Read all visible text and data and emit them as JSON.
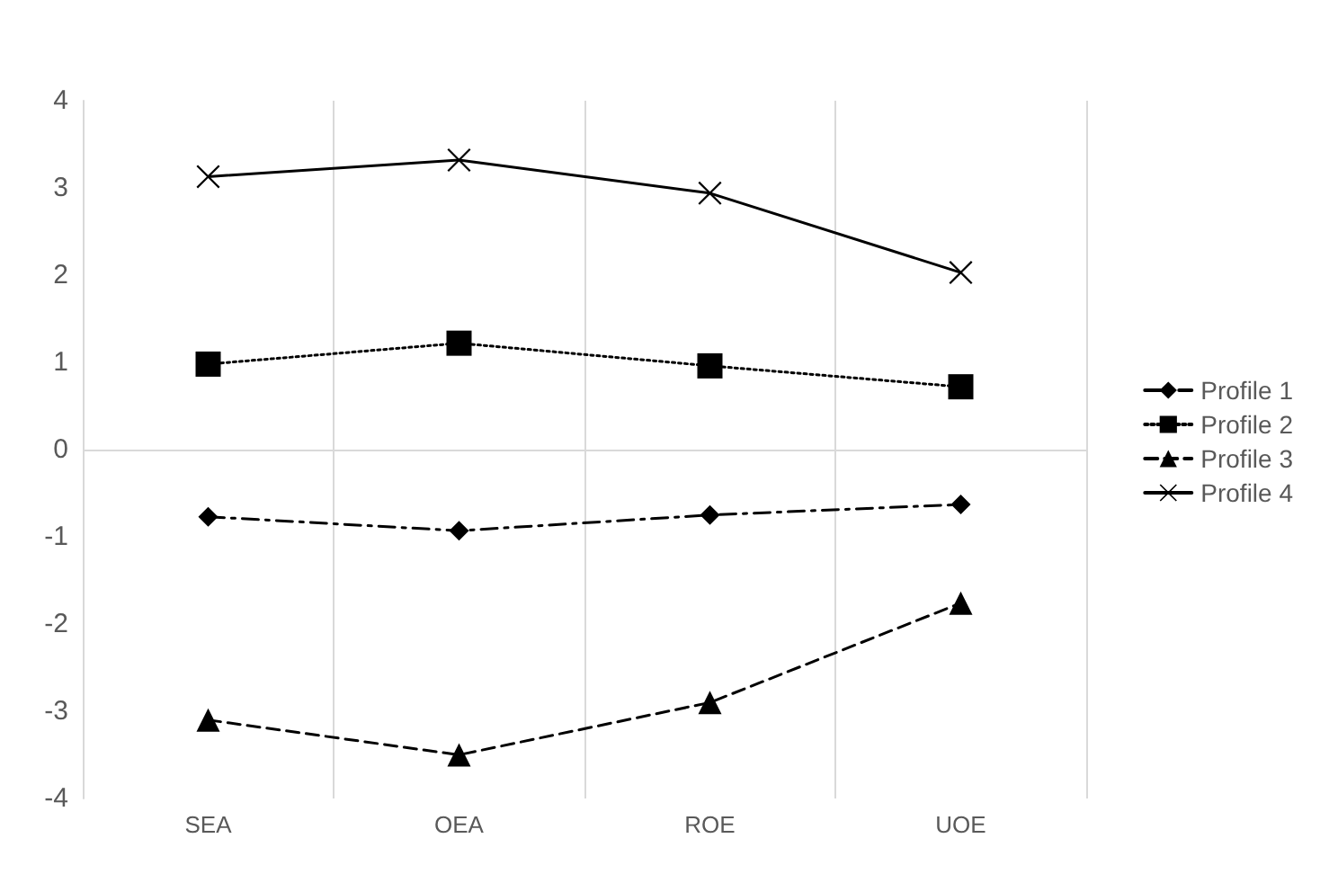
{
  "chart_data": {
    "type": "line",
    "categories": [
      "SEA",
      "OEA",
      "ROE",
      "UOE"
    ],
    "series": [
      {
        "name": "Profile 1",
        "color": "#000000",
        "marker": "diamond",
        "line_style": "dashdot",
        "values": [
          -0.77,
          -0.93,
          -0.75,
          -0.63
        ]
      },
      {
        "name": "Profile 2",
        "color": "#000000",
        "marker": "square",
        "line_style": "dotted",
        "values": [
          0.98,
          1.22,
          0.96,
          0.72
        ]
      },
      {
        "name": "Profile 3",
        "color": "#000000",
        "marker": "triangle",
        "line_style": "dashed",
        "values": [
          -3.1,
          -3.5,
          -2.9,
          -1.76
        ]
      },
      {
        "name": "Profile 4",
        "color": "#000000",
        "marker": "cross",
        "line_style": "solid",
        "values": [
          3.13,
          3.32,
          2.94,
          2.03
        ]
      }
    ],
    "ylim": [
      -4,
      4
    ],
    "yticks": [
      -4,
      -3,
      -2,
      -1,
      0,
      1,
      2,
      3,
      4
    ],
    "ref_lines": [
      {
        "axis": "y",
        "value": 0,
        "color": "#d9d9d9",
        "line_style": "solid"
      }
    ],
    "grid": "x",
    "legend": "right"
  }
}
